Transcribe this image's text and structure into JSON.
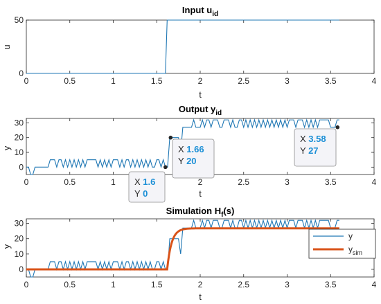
{
  "colors": {
    "signal": "#1f77b4",
    "sim": "#d95319",
    "tip_value": "#1b8fd6"
  },
  "chart_data": [
    {
      "type": "line",
      "title_main": "Input u",
      "title_sub": "id",
      "xlabel": "t",
      "ylabel": "u",
      "xlim": [
        0,
        4
      ],
      "ylim": [
        0,
        50
      ],
      "xticks": [
        "0",
        "0.5",
        "1",
        "1.5",
        "2",
        "2.5",
        "3",
        "3.5",
        "4"
      ],
      "yticks": [
        "0",
        "50"
      ],
      "series": [
        {
          "x": [
            0,
            1.6,
            1.62,
            3.6
          ],
          "y": [
            0,
            0,
            50,
            50
          ]
        }
      ]
    },
    {
      "type": "line",
      "title_main": "Output y",
      "title_sub": "id",
      "xlabel": "t",
      "ylabel": "y",
      "xlim": [
        0,
        4
      ],
      "ylim": [
        -5,
        33
      ],
      "xticks": [
        "0",
        "0.5",
        "1",
        "1.5",
        "2",
        "2.5",
        "3",
        "3.5",
        "4"
      ],
      "yticks": [
        "0",
        "10",
        "20",
        "30"
      ],
      "datatips": [
        {
          "x_label": "X",
          "x_value": "1.6",
          "y_label": "Y",
          "y_value": "0",
          "x": 1.6,
          "y": 0
        },
        {
          "x_label": "X",
          "x_value": "1.66",
          "y_label": "Y",
          "y_value": "20",
          "x": 1.66,
          "y": 20
        },
        {
          "x_label": "X",
          "x_value": "3.58",
          "y_label": "Y",
          "y_value": "27",
          "x": 3.58,
          "y": 27
        }
      ]
    },
    {
      "type": "line",
      "title_main": "Simulation H",
      "title_sub": "f",
      "title_tail": "(s)",
      "xlabel": "t",
      "ylabel": "y",
      "xlim": [
        0,
        4
      ],
      "ylim": [
        -5,
        33
      ],
      "xticks": [
        "0",
        "0.5",
        "1",
        "1.5",
        "2",
        "2.5",
        "3",
        "3.5",
        "4"
      ],
      "yticks": [
        "0",
        "10",
        "20",
        "30"
      ],
      "legend": {
        "placement": "right",
        "entries": [
          {
            "main": "y",
            "sub": ""
          },
          {
            "main": "y",
            "sub": "sim"
          }
        ]
      },
      "sim": {
        "start": 1.62,
        "final": 26.8,
        "time_constant": 0.05
      }
    }
  ]
}
